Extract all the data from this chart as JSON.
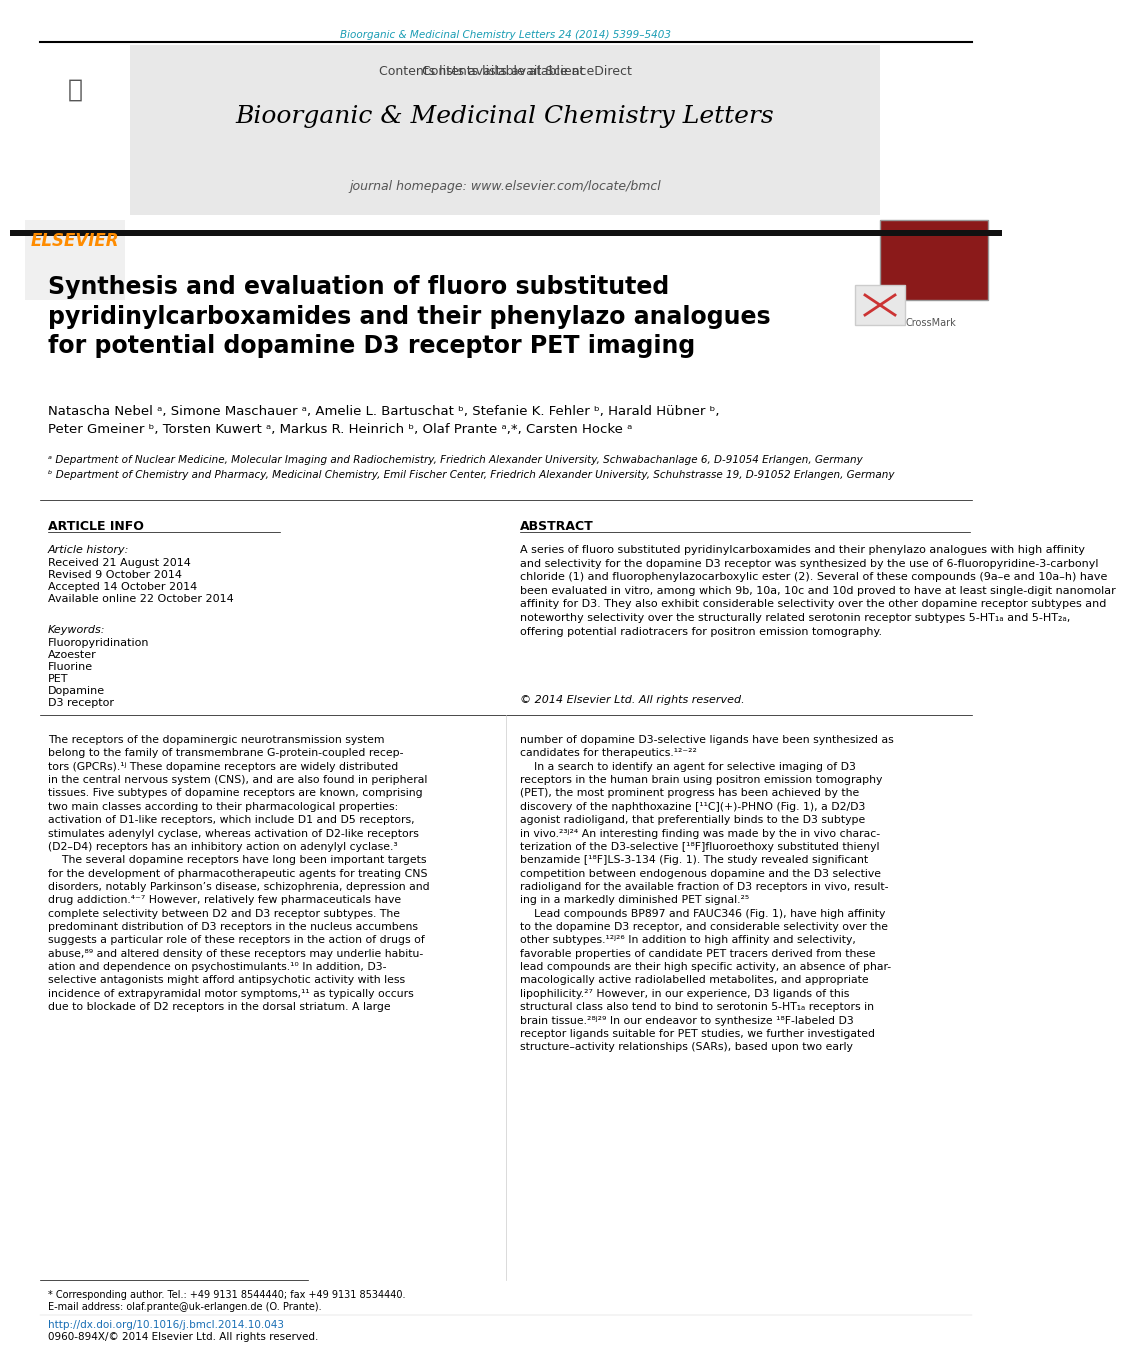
{
  "page_bg": "#ffffff",
  "top_journal_ref": "Bioorganic & Medicinal Chemistry Letters 24 (2014) 5399–5403",
  "top_journal_ref_color": "#1a9db4",
  "header_bg": "#e8e8e8",
  "header_contents_text": "Contents lists available at ",
  "header_sciencedirect": "ScienceDirect",
  "header_sciencedirect_color": "#1a9db4",
  "header_journal_name": "Bioorganic & Medicinal Chemistry Letters",
  "header_homepage_text": "journal homepage: www.elsevier.com/locate/bmcl",
  "elsevier_color": "#ff8c00",
  "divider_color": "#000000",
  "title": "Synthesis and evaluation of fluoro substituted\npyridinylcarboxamides and their phenylazo analogues\nfor potential dopamine D3 receptor PET imaging",
  "title_color": "#000000",
  "title_fontsize": 17,
  "authors": "Natascha Nebel ᵃ, Simone Maschauer ᵃ, Amelie L. Bartuschat ᵇ, Stefanie K. Fehler ᵇ, Harald Hübner ᵇ,\nPeter Gmeiner ᵇ, Torsten Kuwert ᵃ, Markus R. Heinrich ᵇ, Olaf Prante ᵃ,*, Carsten Hocke ᵃ",
  "authors_color": "#000000",
  "affil_a": "ᵃ Department of Nuclear Medicine, Molecular Imaging and Radiochemistry, Friedrich Alexander University, Schwabachanlage 6, D-91054 Erlangen, Germany",
  "affil_b": "ᵇ Department of Chemistry and Pharmacy, Medicinal Chemistry, Emil Fischer Center, Friedrich Alexander University, Schuhstrasse 19, D-91052 Erlangen, Germany",
  "affil_color": "#000000",
  "article_info_title": "ARTICLE INFO",
  "article_history_label": "Article history:",
  "received": "Received 21 August 2014",
  "revised": "Revised 9 October 2014",
  "accepted": "Accepted 14 October 2014",
  "available": "Available online 22 October 2014",
  "keywords_label": "Keywords:",
  "keywords": "Fluoropyridination\nAzoester\nFluorine\nPET\nDopamine\nD3 receptor",
  "abstract_title": "ABSTRACT",
  "abstract_text": "A series of fluoro substituted pyridinylcarboxamides and their phenylazo analogues with high affinity\nand selectivity for the dopamine D3 receptor was synthesized by the use of 6-fluoropyridine-3-carbonyl\nchloride (1) and fluorophenylazocarboxylic ester (2). Several of these compounds (9a–e and 10a–h) have\nbeen evaluated in vitro, among which 9b, 10a, 10c and 10d proved to have at least single-digit nanomolar\naffinity for D3. They also exhibit considerable selectivity over the other dopamine receptor subtypes and\nnoteworthy selectivity over the structurally related serotonin receptor subtypes 5-HT₁ₐ and 5-HT₂ₐ,\noffering potential radiotracers for positron emission tomography.",
  "copyright_text": "© 2014 Elsevier Ltd. All rights reserved.",
  "body_col1": "The receptors of the dopaminergic neurotransmission system\nbelong to the family of transmembrane G-protein-coupled recep-\ntors (GPCRs).¹ʲ These dopamine receptors are widely distributed\nin the central nervous system (CNS), and are also found in peripheral\ntissues. Five subtypes of dopamine receptors are known, comprising\ntwo main classes according to their pharmacological properties:\nactivation of D1-like receptors, which include D1 and D5 receptors,\nstimulates adenylyl cyclase, whereas activation of D2-like receptors\n(D2–D4) receptors has an inhibitory action on adenylyl cyclase.³\n    The several dopamine receptors have long been important targets\nfor the development of pharmacotherapeutic agents for treating CNS\ndisorders, notably Parkinson’s disease, schizophrenia, depression and\ndrug addiction.⁴⁻⁷ However, relatively few pharmaceuticals have\ncomplete selectivity between D2 and D3 receptor subtypes. The\npredominant distribution of D3 receptors in the nucleus accumbens\nsuggests a particular role of these receptors in the action of drugs of\nabuse,⁸⁹ and altered density of these receptors may underlie habitu-\nation and dependence on psychostimulants.¹⁰ In addition, D3-\nselective antagonists might afford antipsychotic activity with less\nincidence of extrapyramidal motor symptoms,¹¹ as typically occurs\ndue to blockade of D2 receptors in the dorsal striatum. A large",
  "body_col2": "number of dopamine D3-selective ligands have been synthesized as\ncandidates for therapeutics.¹²⁻²²\n    In a search to identify an agent for selective imaging of D3\nreceptors in the human brain using positron emission tomography\n(PET), the most prominent progress has been achieved by the\ndiscovery of the naphthoxazine [¹¹C](+)-PHNO (Fig. 1), a D2/D3\nagonist radioligand, that preferentially binds to the D3 subtype\nin vivo.²³ʲ²⁴ An interesting finding was made by the in vivo charac-\nterization of the D3-selective [¹⁸F]fluoroethoxy substituted thienyl\nbenzamide [¹⁸F]LS-3-134 (Fig. 1). The study revealed significant\ncompetition between endogenous dopamine and the D3 selective\nradioligand for the available fraction of D3 receptors in vivo, result-\ning in a markedly diminished PET signal.²⁵\n    Lead compounds BP897 and FAUC346 (Fig. 1), have high affinity\nto the dopamine D3 receptor, and considerable selectivity over the\nother subtypes.¹²ʲ²⁶ In addition to high affinity and selectivity,\nfavorable properties of candidate PET tracers derived from these\nlead compounds are their high specific activity, an absence of phar-\nmacologically active radiolabelled metabolites, and appropriate\nlipophilicity.²⁷ However, in our experience, D3 ligands of this\nstructural class also tend to bind to serotonin 5-HT₁ₐ receptors in\nbrain tissue.²⁸ʲ²⁹ In our endeavor to synthesize ¹⁸F-labeled D3\nreceptor ligands suitable for PET studies, we further investigated\nstructure–activity relationships (SARs), based upon two early",
  "footnote_star": "* Corresponding author. Tel.: +49 9131 8544440; fax +49 9131 8534440.",
  "footnote_email": "E-mail address: olaf.prante@uk-erlangen.de (O. Prante).",
  "footnote_doi": "http://dx.doi.org/10.1016/j.bmcl.2014.10.043",
  "footnote_issn": "0960-894X/© 2014 Elsevier Ltd. All rights reserved."
}
